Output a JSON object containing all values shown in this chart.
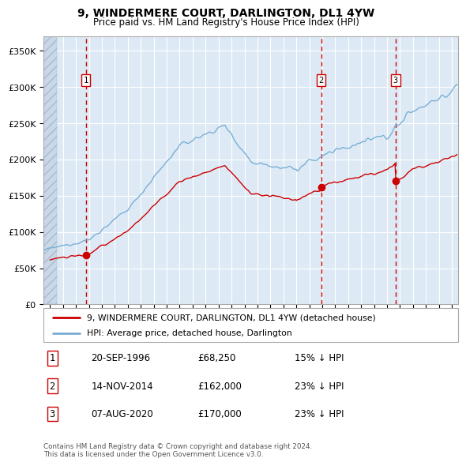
{
  "title": "9, WINDERMERE COURT, DARLINGTON, DL1 4YW",
  "subtitle": "Price paid vs. HM Land Registry's House Price Index (HPI)",
  "sale_prices": [
    68250,
    162000,
    170000
  ],
  "sale_labels": [
    "1",
    "2",
    "3"
  ],
  "ylabel_ticks": [
    0,
    50000,
    100000,
    150000,
    200000,
    250000,
    300000,
    350000
  ],
  "ylabel_labels": [
    "£0",
    "£50K",
    "£100K",
    "£150K",
    "£200K",
    "£250K",
    "£300K",
    "£350K"
  ],
  "ylim": [
    0,
    370000
  ],
  "xlim_start": 1993.5,
  "xlim_end": 2025.5,
  "hpi_color": "#7aaed6",
  "price_color": "#cc0000",
  "vline_color": "#cc0000",
  "bg_color": "#ddeaf5",
  "legend_entries": [
    "9, WINDERMERE COURT, DARLINGTON, DL1 4YW (detached house)",
    "HPI: Average price, detached house, Darlington"
  ],
  "table_data": [
    [
      "1",
      "20-SEP-1996",
      "£68,250",
      "15% ↓ HPI"
    ],
    [
      "2",
      "14-NOV-2014",
      "£162,000",
      "23% ↓ HPI"
    ],
    [
      "3",
      "07-AUG-2020",
      "£170,000",
      "23% ↓ HPI"
    ]
  ],
  "footer": "Contains HM Land Registry data © Crown copyright and database right 2024.\nThis data is licensed under the Open Government Licence v3.0."
}
